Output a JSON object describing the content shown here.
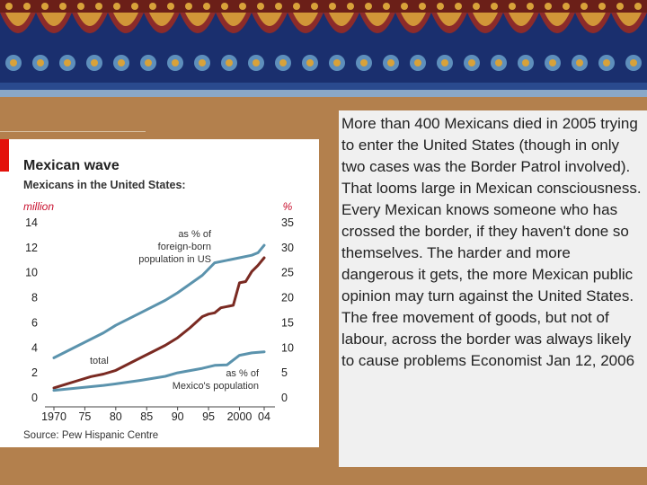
{
  "colors": {
    "background": "#b3804d",
    "chart_panel": "#ffffff",
    "text_panel": "#f0f0f0",
    "total_line": "#7a2a22",
    "foreign_born_line": "#5b93ad",
    "mexico_line": "#5b93ad",
    "mosaic_deep_blue": "#1a2f6e",
    "mosaic_red": "#a12a1e",
    "mosaic_gold": "#d8a23a",
    "mosaic_light_blue": "#6fa7cf"
  },
  "decor": {
    "banner": "mosaic-tile-banner"
  },
  "body_text": "More than 400 Mexicans died in 2005 trying to enter the United States (though in only two cases was the Border Patrol involved). That looms large in Mexican consciousness. Every Mexican knows someone who has crossed the border, if they haven't done so themselves. The harder and more dangerous it gets, the more Mexican public opinion may turn against the United States. The free movement of goods, but not of labour, across the border was always likely to cause problems Economist Jan 12, 2006",
  "chart_data": {
    "type": "line",
    "title": "Mexican wave",
    "subtitle": "Mexicans in the United States:",
    "ylabel_left": "million",
    "ylabel_right": "%",
    "source": "Source: Pew Hispanic Centre",
    "xlim": [
      1970,
      2004
    ],
    "ylim_left": [
      0,
      14
    ],
    "ylim_right": [
      0,
      35
    ],
    "x_ticks": [
      {
        "value": 1970,
        "label": "1970"
      },
      {
        "value": 1975,
        "label": "75"
      },
      {
        "value": 1980,
        "label": "80"
      },
      {
        "value": 1985,
        "label": "85"
      },
      {
        "value": 1990,
        "label": "90"
      },
      {
        "value": 1995,
        "label": "95"
      },
      {
        "value": 2000,
        "label": "2000"
      },
      {
        "value": 2004,
        "label": "04"
      }
    ],
    "y_ticks_left": [
      "0",
      "2",
      "4",
      "6",
      "8",
      "10",
      "12",
      "14"
    ],
    "y_ticks_right": [
      "0",
      "5",
      "10",
      "15",
      "20",
      "25",
      "30",
      "35"
    ],
    "grid": false,
    "series": [
      {
        "name": "total",
        "axis": "left",
        "color": "#7a2a22",
        "x": [
          1970,
          1972,
          1974,
          1976,
          1978,
          1980,
          1982,
          1984,
          1986,
          1988,
          1990,
          1992,
          1994,
          1995,
          1996,
          1997,
          1998,
          1999,
          2000,
          2001,
          2002,
          2003,
          2004
        ],
        "y": [
          0.8,
          1.1,
          1.4,
          1.7,
          1.9,
          2.2,
          2.7,
          3.2,
          3.7,
          4.2,
          4.8,
          5.6,
          6.5,
          6.7,
          6.8,
          7.2,
          7.3,
          7.4,
          9.2,
          9.3,
          10.1,
          10.6,
          11.2
        ]
      },
      {
        "name": "as % of foreign-born population in US",
        "axis": "right",
        "color": "#5b93ad",
        "x": [
          1970,
          1974,
          1978,
          1980,
          1984,
          1988,
          1990,
          1994,
          1996,
          1998,
          2000,
          2002,
          2003,
          2004
        ],
        "y": [
          8,
          10.5,
          13,
          14.5,
          17,
          19.5,
          21,
          24.5,
          27,
          27.5,
          28,
          28.5,
          29,
          30.5
        ]
      },
      {
        "name": "as % of Mexico's population",
        "axis": "right",
        "color": "#5b93ad",
        "x": [
          1970,
          1974,
          1978,
          1980,
          1984,
          1988,
          1990,
          1994,
          1996,
          1998,
          2000,
          2002,
          2004
        ],
        "y": [
          1.5,
          2.0,
          2.5,
          2.8,
          3.5,
          4.3,
          5.0,
          5.9,
          6.5,
          6.6,
          8.5,
          9.0,
          9.2
        ]
      }
    ],
    "annotations": {
      "total": "total",
      "foreign_born": [
        "as % of",
        "foreign-born",
        "population in US"
      ],
      "mexico": [
        "as % of",
        "Mexico's population"
      ]
    }
  }
}
